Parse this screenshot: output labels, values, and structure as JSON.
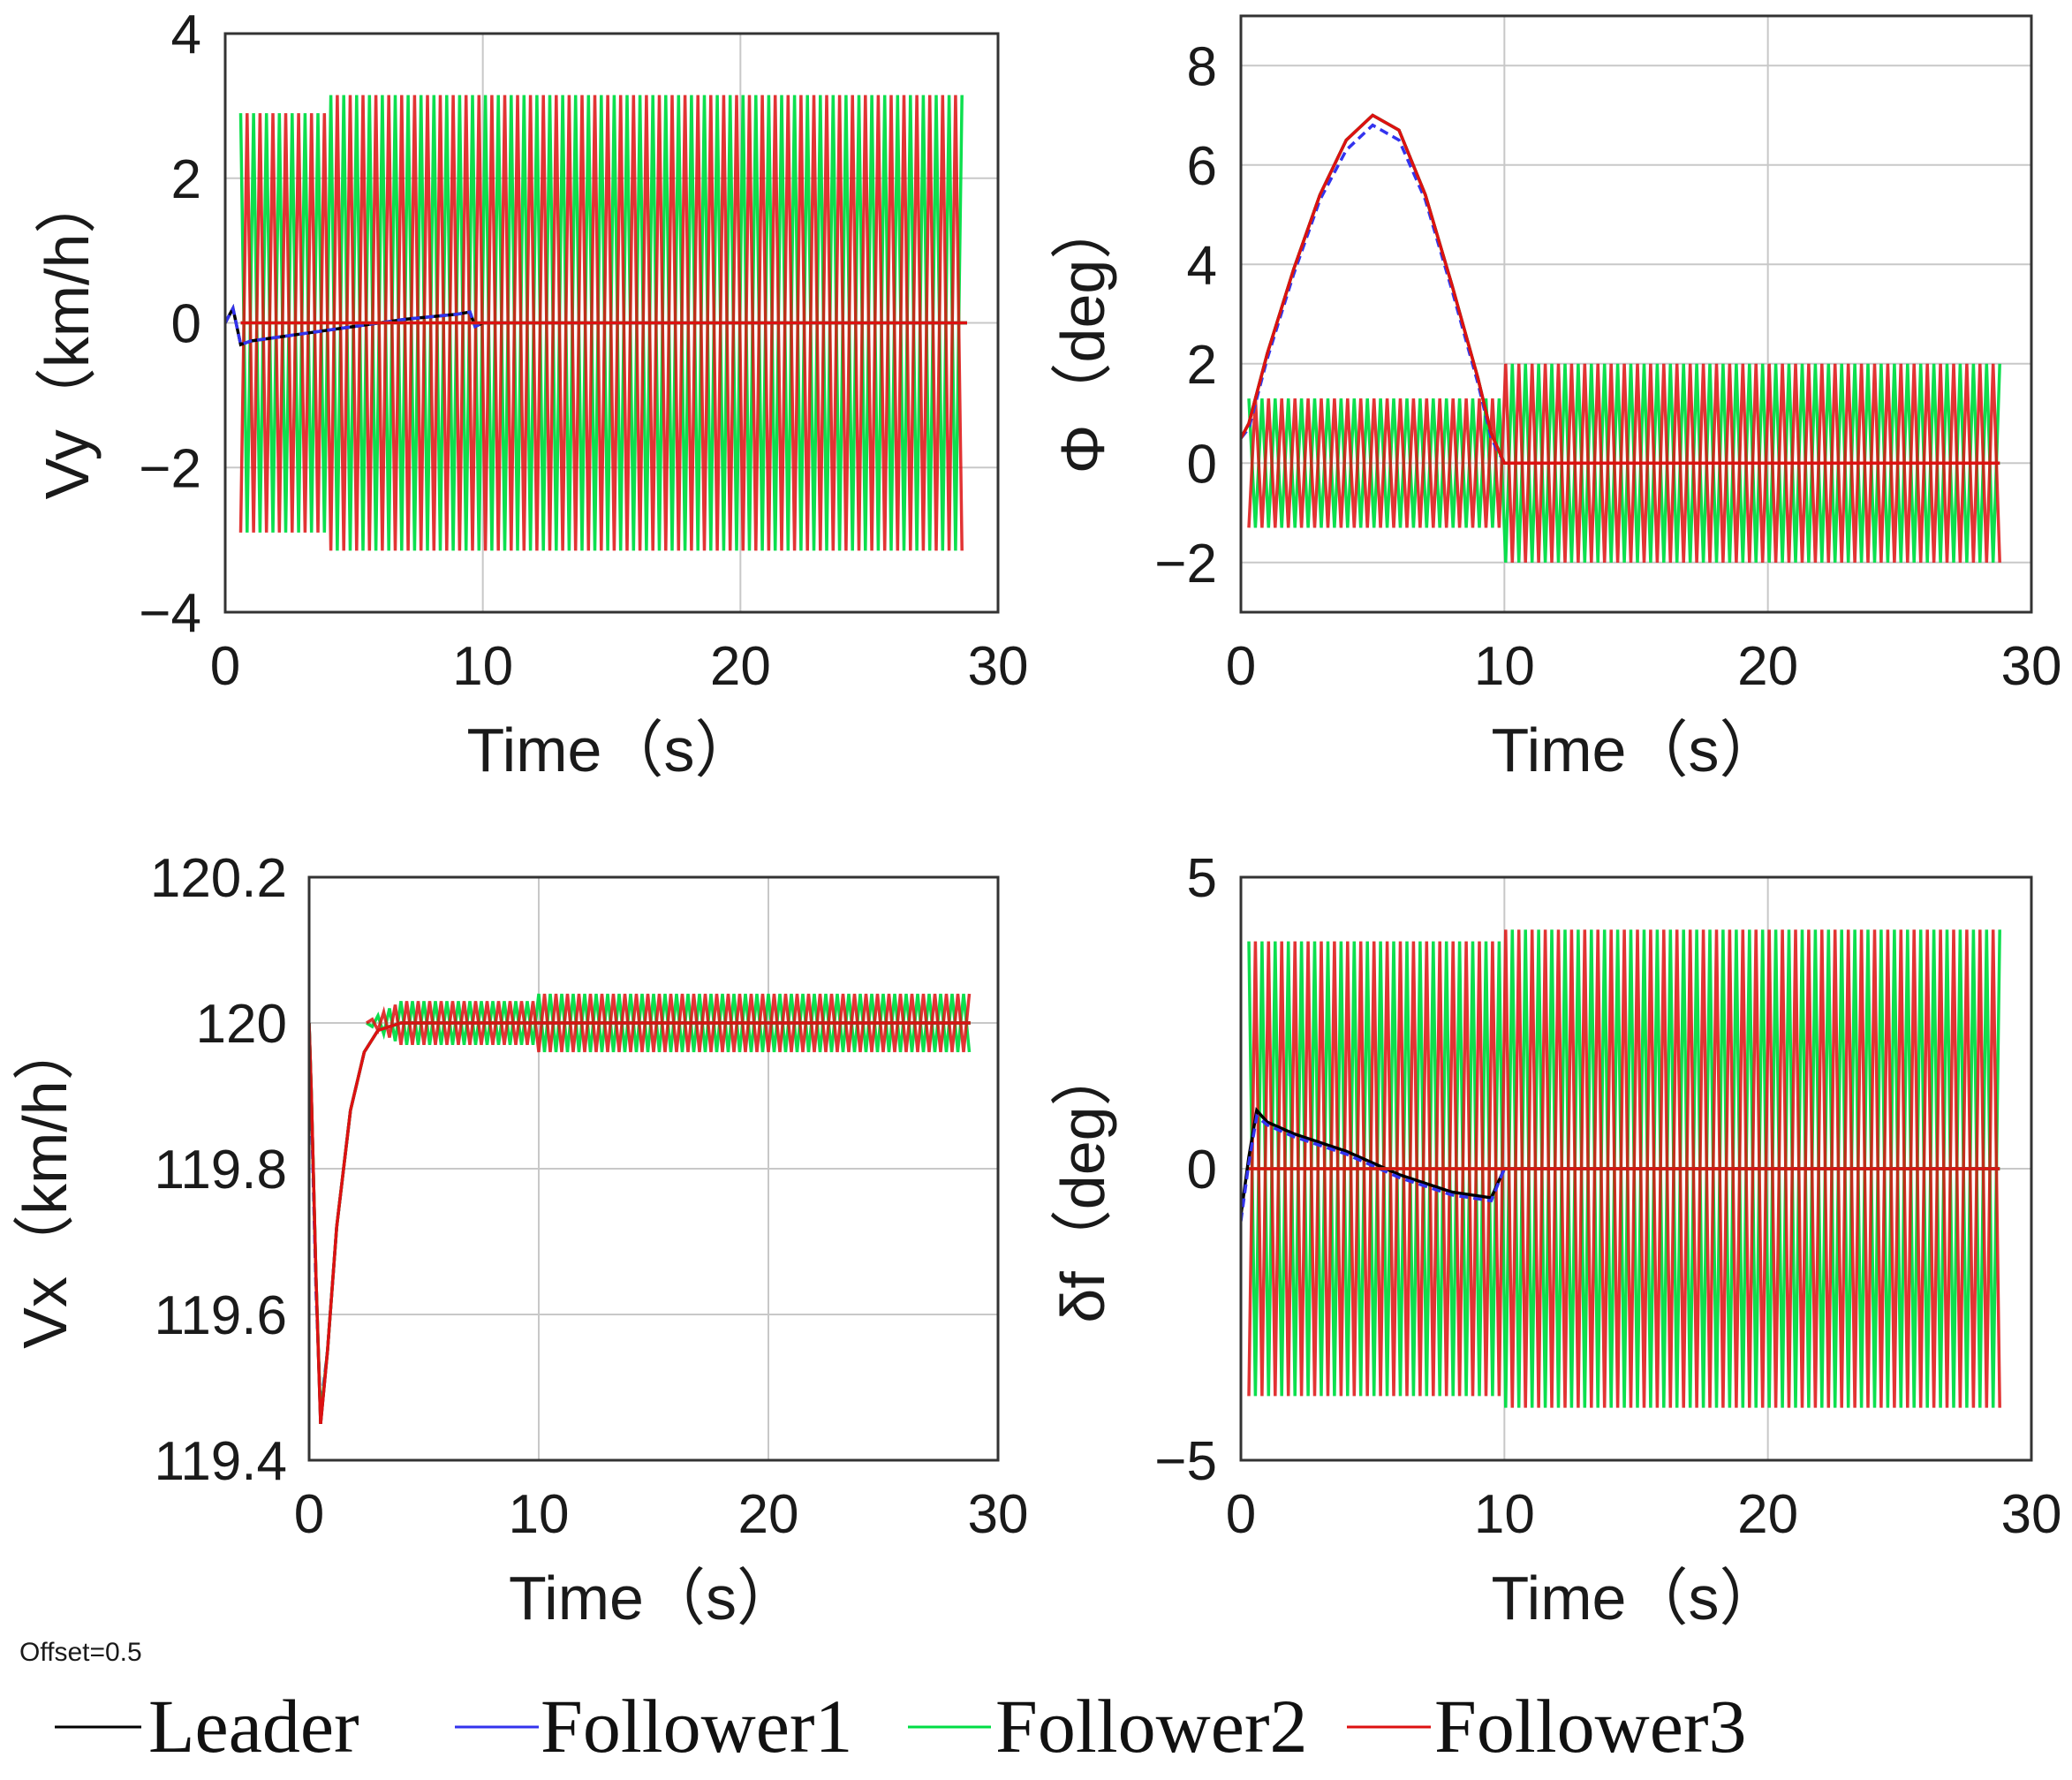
{
  "offset_note": "Offset=0.5",
  "colors": {
    "Leader": "#000000",
    "Follower1": "#3333ee",
    "Follower2": "#00dd44",
    "Follower3": "#dd1111"
  },
  "legend": [
    {
      "name": "Leader",
      "label": "Leader"
    },
    {
      "name": "Follower1",
      "label": "Follower1"
    },
    {
      "name": "Follower2",
      "label": "Follower2"
    },
    {
      "name": "Follower3",
      "label": "Follower3"
    }
  ],
  "chart_data": [
    {
      "id": "vy",
      "type": "line",
      "xlabel": "Time（s）",
      "ylabel": "Vy（km/h）",
      "xlim": [
        0,
        30
      ],
      "ylim": [
        -4,
        4
      ],
      "xticks": [
        0,
        10,
        20,
        30
      ],
      "yticks": [
        4,
        2,
        0,
        -2,
        -4
      ],
      "ytick_labels": [
        "4",
        "2",
        "0",
        "−2",
        "−4"
      ],
      "grid": true,
      "osc": {
        "t0": 0.6,
        "t1": 28.8,
        "f": 2.0,
        "amp0": 2.9,
        "amp_change": 4.0,
        "amp1": 3.15,
        "center": 0.0
      },
      "series": [
        {
          "name": "Leader",
          "x": [
            0,
            0.3,
            0.6,
            1,
            3,
            5,
            7,
            9,
            9.5,
            9.7,
            10,
            15,
            20,
            28.8
          ],
          "y": [
            0,
            0.2,
            -0.3,
            -0.25,
            -0.15,
            -0.05,
            0.05,
            0.12,
            0.15,
            -0.05,
            0,
            0,
            0,
            0
          ]
        },
        {
          "name": "Follower1",
          "x": [
            0,
            0.3,
            0.6,
            1,
            3,
            5,
            7,
            9,
            9.5,
            9.7,
            10,
            15,
            20,
            28.8
          ],
          "y": [
            0,
            0.2,
            -0.3,
            -0.25,
            -0.15,
            -0.05,
            0.05,
            0.12,
            0.15,
            -0.05,
            0,
            0,
            0,
            0
          ]
        },
        {
          "name": "Follower2",
          "x": [
            0.6,
            28.8
          ],
          "y": [
            0,
            0
          ]
        },
        {
          "name": "Follower3",
          "x": [
            0.6,
            28.8
          ],
          "y": [
            0,
            0
          ]
        }
      ]
    },
    {
      "id": "phi",
      "type": "line",
      "xlabel": "Time（s）",
      "ylabel": "Φ（deg）",
      "xlim": [
        0,
        30
      ],
      "ylim": [
        -3,
        9
      ],
      "xticks": [
        0,
        10,
        20,
        30
      ],
      "yticks": [
        8,
        6,
        4,
        2,
        0,
        -2
      ],
      "ytick_labels": [
        "8",
        "6",
        "4",
        "2",
        "0",
        "−2"
      ],
      "grid": true,
      "osc": {
        "t0": 0.3,
        "t1": 28.8,
        "f": 2.0,
        "amp0": 1.3,
        "amp_change": 10.0,
        "amp1": 2.0,
        "center": 0.0
      },
      "series": [
        {
          "name": "Leader",
          "x": [
            0,
            0.3,
            1,
            2,
            3,
            4,
            5,
            6,
            7,
            8,
            9,
            9.5,
            10,
            12,
            20,
            28.8
          ],
          "y": [
            0.5,
            0.8,
            2.2,
            3.9,
            5.4,
            6.5,
            7.0,
            6.7,
            5.4,
            3.6,
            1.7,
            0.6,
            0,
            0,
            0,
            0
          ]
        },
        {
          "name": "Follower1",
          "x": [
            0,
            0.3,
            1,
            2,
            3,
            4,
            5,
            6,
            7,
            8,
            9,
            9.5,
            10,
            12,
            20,
            28.8
          ],
          "y": [
            0.5,
            0.7,
            2.1,
            3.8,
            5.3,
            6.3,
            6.8,
            6.5,
            5.3,
            3.5,
            1.6,
            0.5,
            0,
            0,
            0,
            0
          ]
        },
        {
          "name": "Follower2",
          "x": [
            0,
            0.3,
            1,
            2,
            3,
            4,
            5,
            6,
            7,
            8,
            9,
            9.5,
            10,
            12,
            20,
            28.8
          ],
          "y": [
            0.5,
            0.8,
            2.2,
            3.9,
            5.4,
            6.5,
            7.0,
            6.7,
            5.4,
            3.6,
            1.7,
            0.6,
            0,
            0,
            0,
            0
          ]
        },
        {
          "name": "Follower3",
          "x": [
            0,
            0.3,
            1,
            2,
            3,
            4,
            5,
            6,
            7,
            8,
            9,
            9.5,
            10,
            12,
            20,
            28.8
          ],
          "y": [
            0.5,
            0.8,
            2.2,
            3.9,
            5.4,
            6.5,
            7.0,
            6.7,
            5.4,
            3.6,
            1.7,
            0.6,
            0,
            0,
            0,
            0
          ]
        }
      ]
    },
    {
      "id": "vx",
      "type": "line",
      "xlabel": "Time（s）",
      "ylabel": "Vx（km/h）",
      "xlim": [
        0,
        30
      ],
      "ylim": [
        119.4,
        120.2
      ],
      "xticks": [
        0,
        10,
        20,
        30
      ],
      "yticks": [
        120.2,
        120,
        119.8,
        119.6,
        119.4
      ],
      "ytick_labels": [
        "120.2",
        "120",
        "119.8",
        "119.6",
        "119.4"
      ],
      "grid": true,
      "osc": {
        "t0": 2.5,
        "t1": 28.8,
        "f": 2.0,
        "amp0": 0.03,
        "amp_change": 10.0,
        "amp1": 0.04,
        "center": 120.0,
        "ramp_from": 2.5,
        "ramp_to": 4.0
      },
      "series": [
        {
          "name": "Leader",
          "x": [
            0,
            0.1,
            0.3,
            0.5,
            0.8,
            1.2,
            1.8,
            2.4,
            3.0,
            4.0,
            10,
            20,
            28.8
          ],
          "y": [
            120.0,
            119.9,
            119.65,
            119.45,
            119.55,
            119.72,
            119.88,
            119.96,
            119.99,
            120.0,
            120.0,
            120.0,
            120.0
          ]
        },
        {
          "name": "Follower1",
          "x": [
            0,
            0.1,
            0.3,
            0.5,
            0.8,
            1.2,
            1.8,
            2.4,
            3.0,
            4.0,
            10,
            20,
            28.8
          ],
          "y": [
            120.0,
            119.88,
            119.63,
            119.47,
            119.55,
            119.72,
            119.88,
            119.96,
            119.99,
            120.0,
            120.0,
            120.0,
            120.0
          ]
        },
        {
          "name": "Follower2",
          "x": [
            0,
            0.1,
            0.3,
            0.5,
            0.8,
            1.2,
            1.8,
            2.4,
            3.0,
            4.0,
            10,
            20,
            28.8
          ],
          "y": [
            120.0,
            119.9,
            119.65,
            119.46,
            119.55,
            119.72,
            119.88,
            119.96,
            119.99,
            120.0,
            120.0,
            120.0,
            120.0
          ]
        },
        {
          "name": "Follower3",
          "x": [
            0,
            0.1,
            0.3,
            0.5,
            0.8,
            1.2,
            1.8,
            2.4,
            3.0,
            4.0,
            10,
            20,
            28.8
          ],
          "y": [
            120.0,
            119.9,
            119.65,
            119.45,
            119.55,
            119.72,
            119.88,
            119.96,
            119.99,
            120.0,
            120.0,
            120.0,
            120.0
          ]
        }
      ]
    },
    {
      "id": "delta",
      "type": "line",
      "xlabel": "Time（s）",
      "ylabel": "δf（deg）",
      "xlim": [
        0,
        30
      ],
      "ylim": [
        -5,
        5
      ],
      "xticks": [
        0,
        10,
        20,
        30
      ],
      "yticks": [
        5,
        0,
        -5
      ],
      "ytick_labels": [
        "5",
        "0",
        "−5"
      ],
      "grid": true,
      "osc": {
        "t0": 0.3,
        "t1": 28.8,
        "f": 2.0,
        "amp0": 3.9,
        "amp_change": 10.0,
        "amp1": 4.1,
        "center": 0.0
      },
      "series": [
        {
          "name": "Leader",
          "x": [
            0,
            0.3,
            0.6,
            1,
            2,
            4,
            6,
            8,
            9.5,
            10,
            12,
            20,
            28.8
          ],
          "y": [
            -0.8,
            0.2,
            1.0,
            0.8,
            0.6,
            0.3,
            -0.1,
            -0.4,
            -0.5,
            0,
            0,
            0,
            0
          ]
        },
        {
          "name": "Follower1",
          "x": [
            0,
            0.3,
            0.6,
            1,
            2,
            4,
            6,
            8,
            9.5,
            10,
            12,
            20,
            28.8
          ],
          "y": [
            -0.9,
            0.1,
            0.9,
            0.75,
            0.55,
            0.25,
            -0.15,
            -0.45,
            -0.55,
            0,
            0,
            0,
            0
          ]
        },
        {
          "name": "Follower2",
          "x": [
            0.3,
            28.8
          ],
          "y": [
            0,
            0
          ]
        },
        {
          "name": "Follower3",
          "x": [
            0.3,
            28.8
          ],
          "y": [
            0,
            0
          ]
        }
      ]
    }
  ]
}
